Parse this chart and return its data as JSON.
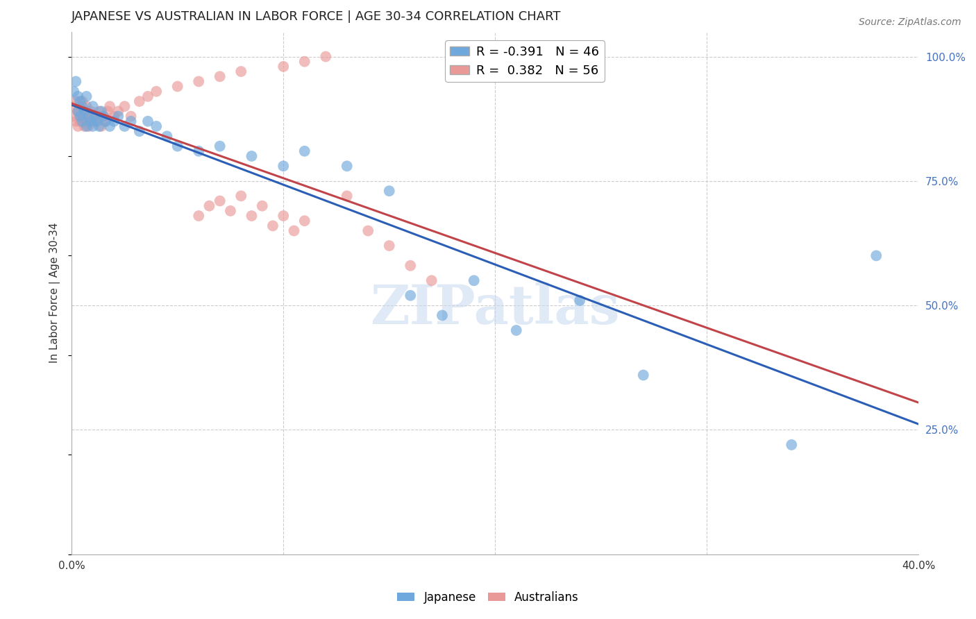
{
  "title": "JAPANESE VS AUSTRALIAN IN LABOR FORCE | AGE 30-34 CORRELATION CHART",
  "source_text": "Source: ZipAtlas.com",
  "ylabel": "In Labor Force | Age 30-34",
  "xlim": [
    0.0,
    0.4
  ],
  "ylim": [
    0.0,
    1.05
  ],
  "ytick_positions": [
    0.0,
    0.25,
    0.5,
    0.75,
    1.0
  ],
  "yticklabels_right": [
    "",
    "25.0%",
    "50.0%",
    "75.0%",
    "100.0%"
  ],
  "legend_blue_r": "-0.391",
  "legend_blue_n": "46",
  "legend_pink_r": "0.382",
  "legend_pink_n": "56",
  "watermark": "ZIPatlas",
  "blue_color": "#6fa8dc",
  "pink_color": "#ea9999",
  "blue_line_color": "#2b5eb5",
  "pink_line_color": "#c0444a",
  "japanese_x": [
    0.001,
    0.002,
    0.003,
    0.003,
    0.004,
    0.004,
    0.005,
    0.005,
    0.006,
    0.007,
    0.007,
    0.008,
    0.009,
    0.01,
    0.01,
    0.011,
    0.012,
    0.013,
    0.014,
    0.015,
    0.016,
    0.018,
    0.02,
    0.022,
    0.025,
    0.028,
    0.032,
    0.036,
    0.04,
    0.045,
    0.05,
    0.06,
    0.07,
    0.085,
    0.1,
    0.11,
    0.13,
    0.15,
    0.16,
    0.175,
    0.19,
    0.21,
    0.24,
    0.27,
    0.34,
    0.38
  ],
  "japanese_y": [
    0.93,
    0.95,
    0.92,
    0.89,
    0.91,
    0.88,
    0.9,
    0.87,
    0.89,
    0.92,
    0.86,
    0.88,
    0.87,
    0.86,
    0.9,
    0.88,
    0.87,
    0.86,
    0.89,
    0.88,
    0.87,
    0.86,
    0.87,
    0.88,
    0.86,
    0.87,
    0.85,
    0.87,
    0.86,
    0.84,
    0.82,
    0.81,
    0.82,
    0.8,
    0.78,
    0.81,
    0.78,
    0.73,
    0.52,
    0.48,
    0.55,
    0.45,
    0.51,
    0.36,
    0.22,
    0.6
  ],
  "australians_x": [
    0.001,
    0.001,
    0.002,
    0.002,
    0.003,
    0.003,
    0.004,
    0.004,
    0.005,
    0.005,
    0.006,
    0.006,
    0.007,
    0.007,
    0.008,
    0.008,
    0.009,
    0.01,
    0.011,
    0.012,
    0.013,
    0.014,
    0.015,
    0.016,
    0.017,
    0.018,
    0.02,
    0.022,
    0.025,
    0.028,
    0.032,
    0.036,
    0.04,
    0.05,
    0.06,
    0.07,
    0.08,
    0.1,
    0.11,
    0.12,
    0.13,
    0.14,
    0.15,
    0.16,
    0.17,
    0.06,
    0.065,
    0.07,
    0.075,
    0.08,
    0.085,
    0.09,
    0.095,
    0.1,
    0.105,
    0.11
  ],
  "australians_y": [
    0.88,
    0.9,
    0.87,
    0.91,
    0.86,
    0.89,
    0.9,
    0.87,
    0.88,
    0.91,
    0.86,
    0.89,
    0.87,
    0.9,
    0.88,
    0.86,
    0.89,
    0.88,
    0.87,
    0.88,
    0.89,
    0.86,
    0.88,
    0.87,
    0.89,
    0.9,
    0.88,
    0.89,
    0.9,
    0.88,
    0.91,
    0.92,
    0.93,
    0.94,
    0.95,
    0.96,
    0.97,
    0.98,
    0.99,
    1.0,
    0.72,
    0.65,
    0.62,
    0.58,
    0.55,
    0.68,
    0.7,
    0.71,
    0.69,
    0.72,
    0.68,
    0.7,
    0.66,
    0.68,
    0.65,
    0.67
  ]
}
